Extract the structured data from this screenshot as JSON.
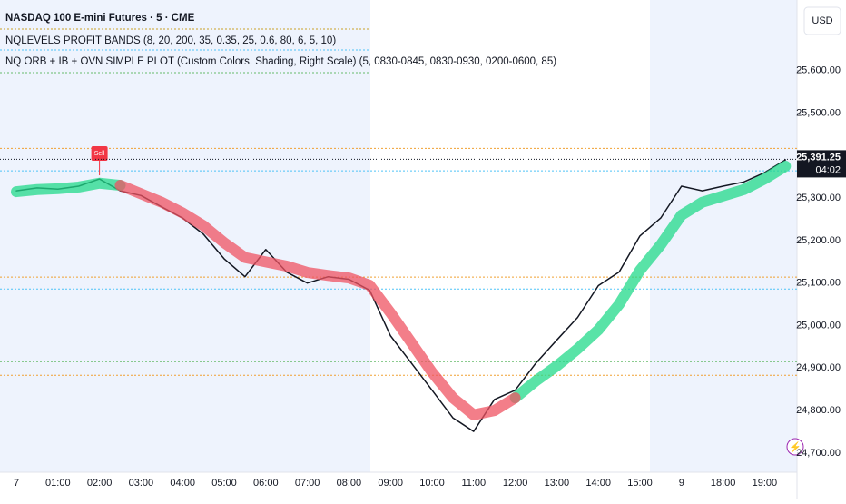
{
  "chart_data": {
    "type": "line",
    "title": "NASDAQ 100 E-mini Futures · 5 · CME",
    "indicators": [
      "NQLEVELS PROFIT BANDS (8, 20, 200, 35, 0.35, 25, 0.6, 80, 6, 5, 10)",
      "NQ ORB + IB + OVN SIMPLE PLOT (Custom Colors, Shading, Right Scale) (5, 0830-0845, 0830-0930, 0200-0600, 85)"
    ],
    "currency": "USD",
    "categories": [
      "7",
      null,
      "01:00",
      null,
      "02:00",
      null,
      "03:00",
      null,
      "04:00",
      null,
      "05:00",
      null,
      "06:00",
      null,
      "07:00",
      null,
      "08:00",
      null,
      "09:00",
      null,
      "10:00",
      null,
      "11:00",
      null,
      "12:00",
      null,
      "13:00",
      null,
      "14:00",
      null,
      "15:00",
      null,
      "9",
      null,
      "18:00",
      null,
      "19:00",
      null
    ],
    "series": [
      {
        "name": "NQ",
        "color": "#131722",
        "values": [
          25317,
          25324,
          25321,
          25328,
          25345,
          25317,
          25306,
          25279,
          25253,
          25215,
          25157,
          25115,
          25179,
          25126,
          25100,
          25115,
          25109,
          25083,
          24976,
          24912,
          24848,
          24783,
          24751,
          24826,
          24848,
          24912,
          24966,
          25019,
          25094,
          25126,
          25211,
          25253,
          25328,
          25317,
          25328,
          25338,
          25360,
          25390
        ]
      },
      {
        "color": "#22d98a",
        "values": [
          25315,
          25320,
          25322,
          25326,
          25335,
          25330,
          null,
          null,
          null,
          null,
          null,
          null,
          null,
          null,
          null,
          null,
          null,
          null,
          null,
          null,
          null,
          null,
          null,
          null,
          24830,
          24870,
          24905,
          24945,
          24990,
          25050,
          25130,
          25190,
          25260,
          25290,
          25305,
          25320,
          25345,
          25375
        ]
      },
      {
        "color": "#ef5361",
        "values": [
          null,
          null,
          null,
          null,
          null,
          25330,
          25310,
          25290,
          25265,
          25235,
          25195,
          25160,
          25150,
          25140,
          25125,
          25118,
          25112,
          25095,
          25030,
          24960,
          24890,
          24830,
          24790,
          24800,
          24830,
          null,
          null,
          null,
          null,
          null,
          null,
          null,
          null,
          null,
          null,
          null,
          null,
          null
        ]
      }
    ],
    "levels": [
      {
        "value": 25417,
        "color": "#f0a030"
      },
      {
        "value": 25364,
        "color": "#4fc3f7"
      },
      {
        "value": 25114,
        "color": "#f0a030"
      },
      {
        "value": 25086,
        "color": "#4fc3f7"
      },
      {
        "value": 24915,
        "color": "#66bb6a"
      },
      {
        "value": 24883,
        "color": "#f0a030"
      }
    ],
    "marker": {
      "index": 4,
      "label": "Sell",
      "color": "#f23645"
    },
    "last_price": {
      "value": 25391.25,
      "label": "25,391.25",
      "countdown": "04:02"
    },
    "ylim": [
      24655,
      25766
    ],
    "yticks": [
      {
        "value": 25600,
        "label": "25,600.00"
      },
      {
        "value": 25500,
        "label": "25,500.00"
      },
      {
        "value": 25300,
        "label": "25,300.00"
      },
      {
        "value": 25200,
        "label": "25,200.00"
      },
      {
        "value": 25100,
        "label": "25,100.00"
      },
      {
        "value": 25000,
        "label": "25,000.00"
      },
      {
        "value": 24900,
        "label": "24,900.00"
      },
      {
        "value": 24800,
        "label": "24,800.00"
      },
      {
        "value": 24700,
        "label": "24,700.00"
      }
    ],
    "grid": false
  }
}
